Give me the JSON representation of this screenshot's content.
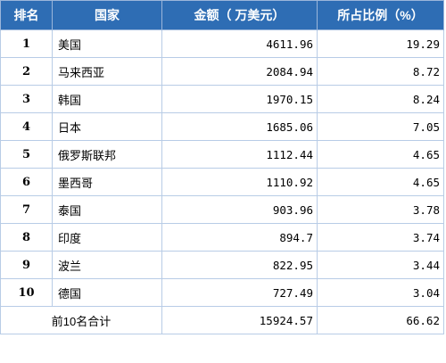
{
  "table": {
    "headers": [
      "排名",
      "国家",
      "金额（ 万美元）",
      "所占比例（%）"
    ],
    "rows": [
      {
        "rank": "1",
        "country": "美国",
        "amount": "4611.96",
        "share": "19.29"
      },
      {
        "rank": "2",
        "country": "马来西亚",
        "amount": "2084.94",
        "share": "8.72"
      },
      {
        "rank": "3",
        "country": "韩国",
        "amount": "1970.15",
        "share": "8.24"
      },
      {
        "rank": "4",
        "country": "日本",
        "amount": "1685.06",
        "share": "7.05"
      },
      {
        "rank": "5",
        "country": "俄罗斯联邦",
        "amount": "1112.44",
        "share": "4.65"
      },
      {
        "rank": "6",
        "country": "墨西哥",
        "amount": "1110.92",
        "share": "4.65"
      },
      {
        "rank": "7",
        "country": "泰国",
        "amount": "903.96",
        "share": "3.78"
      },
      {
        "rank": "8",
        "country": "印度",
        "amount": "894.7",
        "share": "3.74"
      },
      {
        "rank": "9",
        "country": "波兰",
        "amount": "822.95",
        "share": "3.44"
      },
      {
        "rank": "10",
        "country": "德国",
        "amount": "727.49",
        "share": "3.04"
      }
    ],
    "total": {
      "label": "前10名合计",
      "amount": "15924.57",
      "share": "66.62"
    }
  },
  "colors": {
    "header_bg": "#2e6db4",
    "header_text": "#ffffff",
    "border": "#b8cce6"
  }
}
